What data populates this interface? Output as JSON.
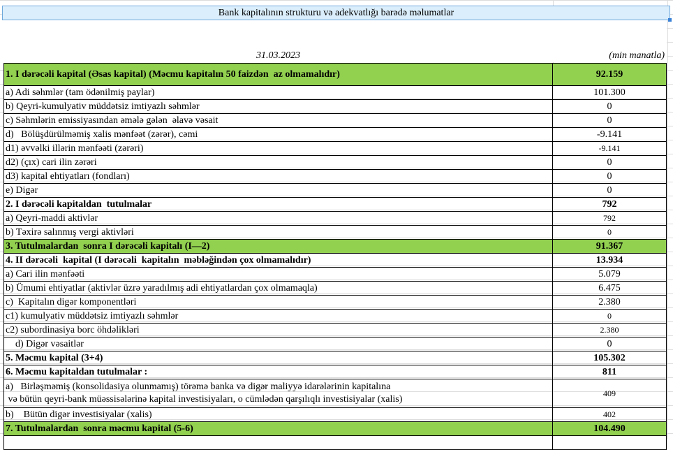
{
  "title": "Bank kapitalının strukturu və adekvatlığı barədə məlumatlar",
  "date": "31.03.2023",
  "unit": "(min manatla)",
  "colors": {
    "highlight_row": "#92d050",
    "selected_cell": "#dbeefb"
  },
  "rows": [
    {
      "label": "1. I dərəcəli kapital (Əsas kapital) (Məcmu kapitalın 50 faizdən  az olmamalıdır)",
      "value": "92.159",
      "bold": true,
      "green": true
    },
    {
      "label": "a) Adi səhmlər (tam ödənilmiş paylar)",
      "value": "101.300"
    },
    {
      "label": "b) Qeyri-kumulyativ müddətsiz imtiyazlı səhmlər",
      "value": "0"
    },
    {
      "label": "c) Səhmlərin emissiyasından əmələ gələn  əlavə vəsait",
      "value": "0"
    },
    {
      "label": "d)   Bölüşdürülməmiş xalis mənfəət (zərər), cəmi",
      "value": "-9.141"
    },
    {
      "label": "d1) əvvəlki illərin mənfəəti (zərəri)",
      "value": "-9.141",
      "small": true
    },
    {
      "label": "d2) (çıx) cari ilin zərəri",
      "value": "0"
    },
    {
      "label": "d3) kapital ehtiyatları (fondları)",
      "value": "0"
    },
    {
      "label": "e) Digər",
      "value": "0"
    },
    {
      "label": "2. I dərəcəli kapitaldan  tutulmalar",
      "value": "792",
      "bold": true
    },
    {
      "label": "a) Qeyri-maddi aktivlər",
      "value": "792",
      "small": true
    },
    {
      "label": "b) Təxirə salınmış vergi aktivləri",
      "value": "0",
      "small": true
    },
    {
      "label": "3. Tutulmalardan  sonra I dərəcəli kapitalı (I—2)",
      "value": "91.367",
      "bold": true,
      "green": true
    },
    {
      "label": "4. II dərəcəli  kapital (I dərəcəli  kapitalın  məbləğindən çox olmamalıdır)",
      "value": "13.934",
      "bold": true
    },
    {
      "label": "a) Cari ilin mənfəəti",
      "value": "5.079"
    },
    {
      "label": "b) Ümumi ehtiyatlar (aktivlər üzrə yaradılmış adi ehtiyatlardan çox olmamaqla)",
      "value": "6.475"
    },
    {
      "label": "c)  Kapitalın digər komponentləri",
      "value": "2.380"
    },
    {
      "label": "c1) kumulyativ müddətsiz imtiyazlı səhmlər",
      "value": "0",
      "small": true
    },
    {
      "label": "c2) subordinasiya borc öhdəlikləri",
      "value": "2.380",
      "small": true
    },
    {
      "label": "    d) Digər vəsaitlər",
      "value": "0"
    },
    {
      "label": "5. Məcmu kapital (3+4)",
      "value": "105.302",
      "bold": true
    },
    {
      "label": "6. Məcmu kapitaldan tutulmalar :",
      "value": "811",
      "bold": true
    },
    {
      "label": "a)   Birləşməmiş (konsolidasiya olunmamış) törəmə banka və digər maliyyə idarələrinin kapitalına",
      "label2": " və bütün qeyri-bank müəssisələrinə kapital investisiyaları, o cümlədən qarşılıqlı investisiyalar (xalis)",
      "value": "409",
      "small": true
    },
    {
      "label": "b)    Bütün digər investisiyalar (xalis)",
      "value": "402",
      "small": true
    },
    {
      "label": "7. Tutulmalardan  sonra məcmu kapital (5-6)",
      "value": "104.490",
      "bold": true,
      "green": true
    }
  ]
}
